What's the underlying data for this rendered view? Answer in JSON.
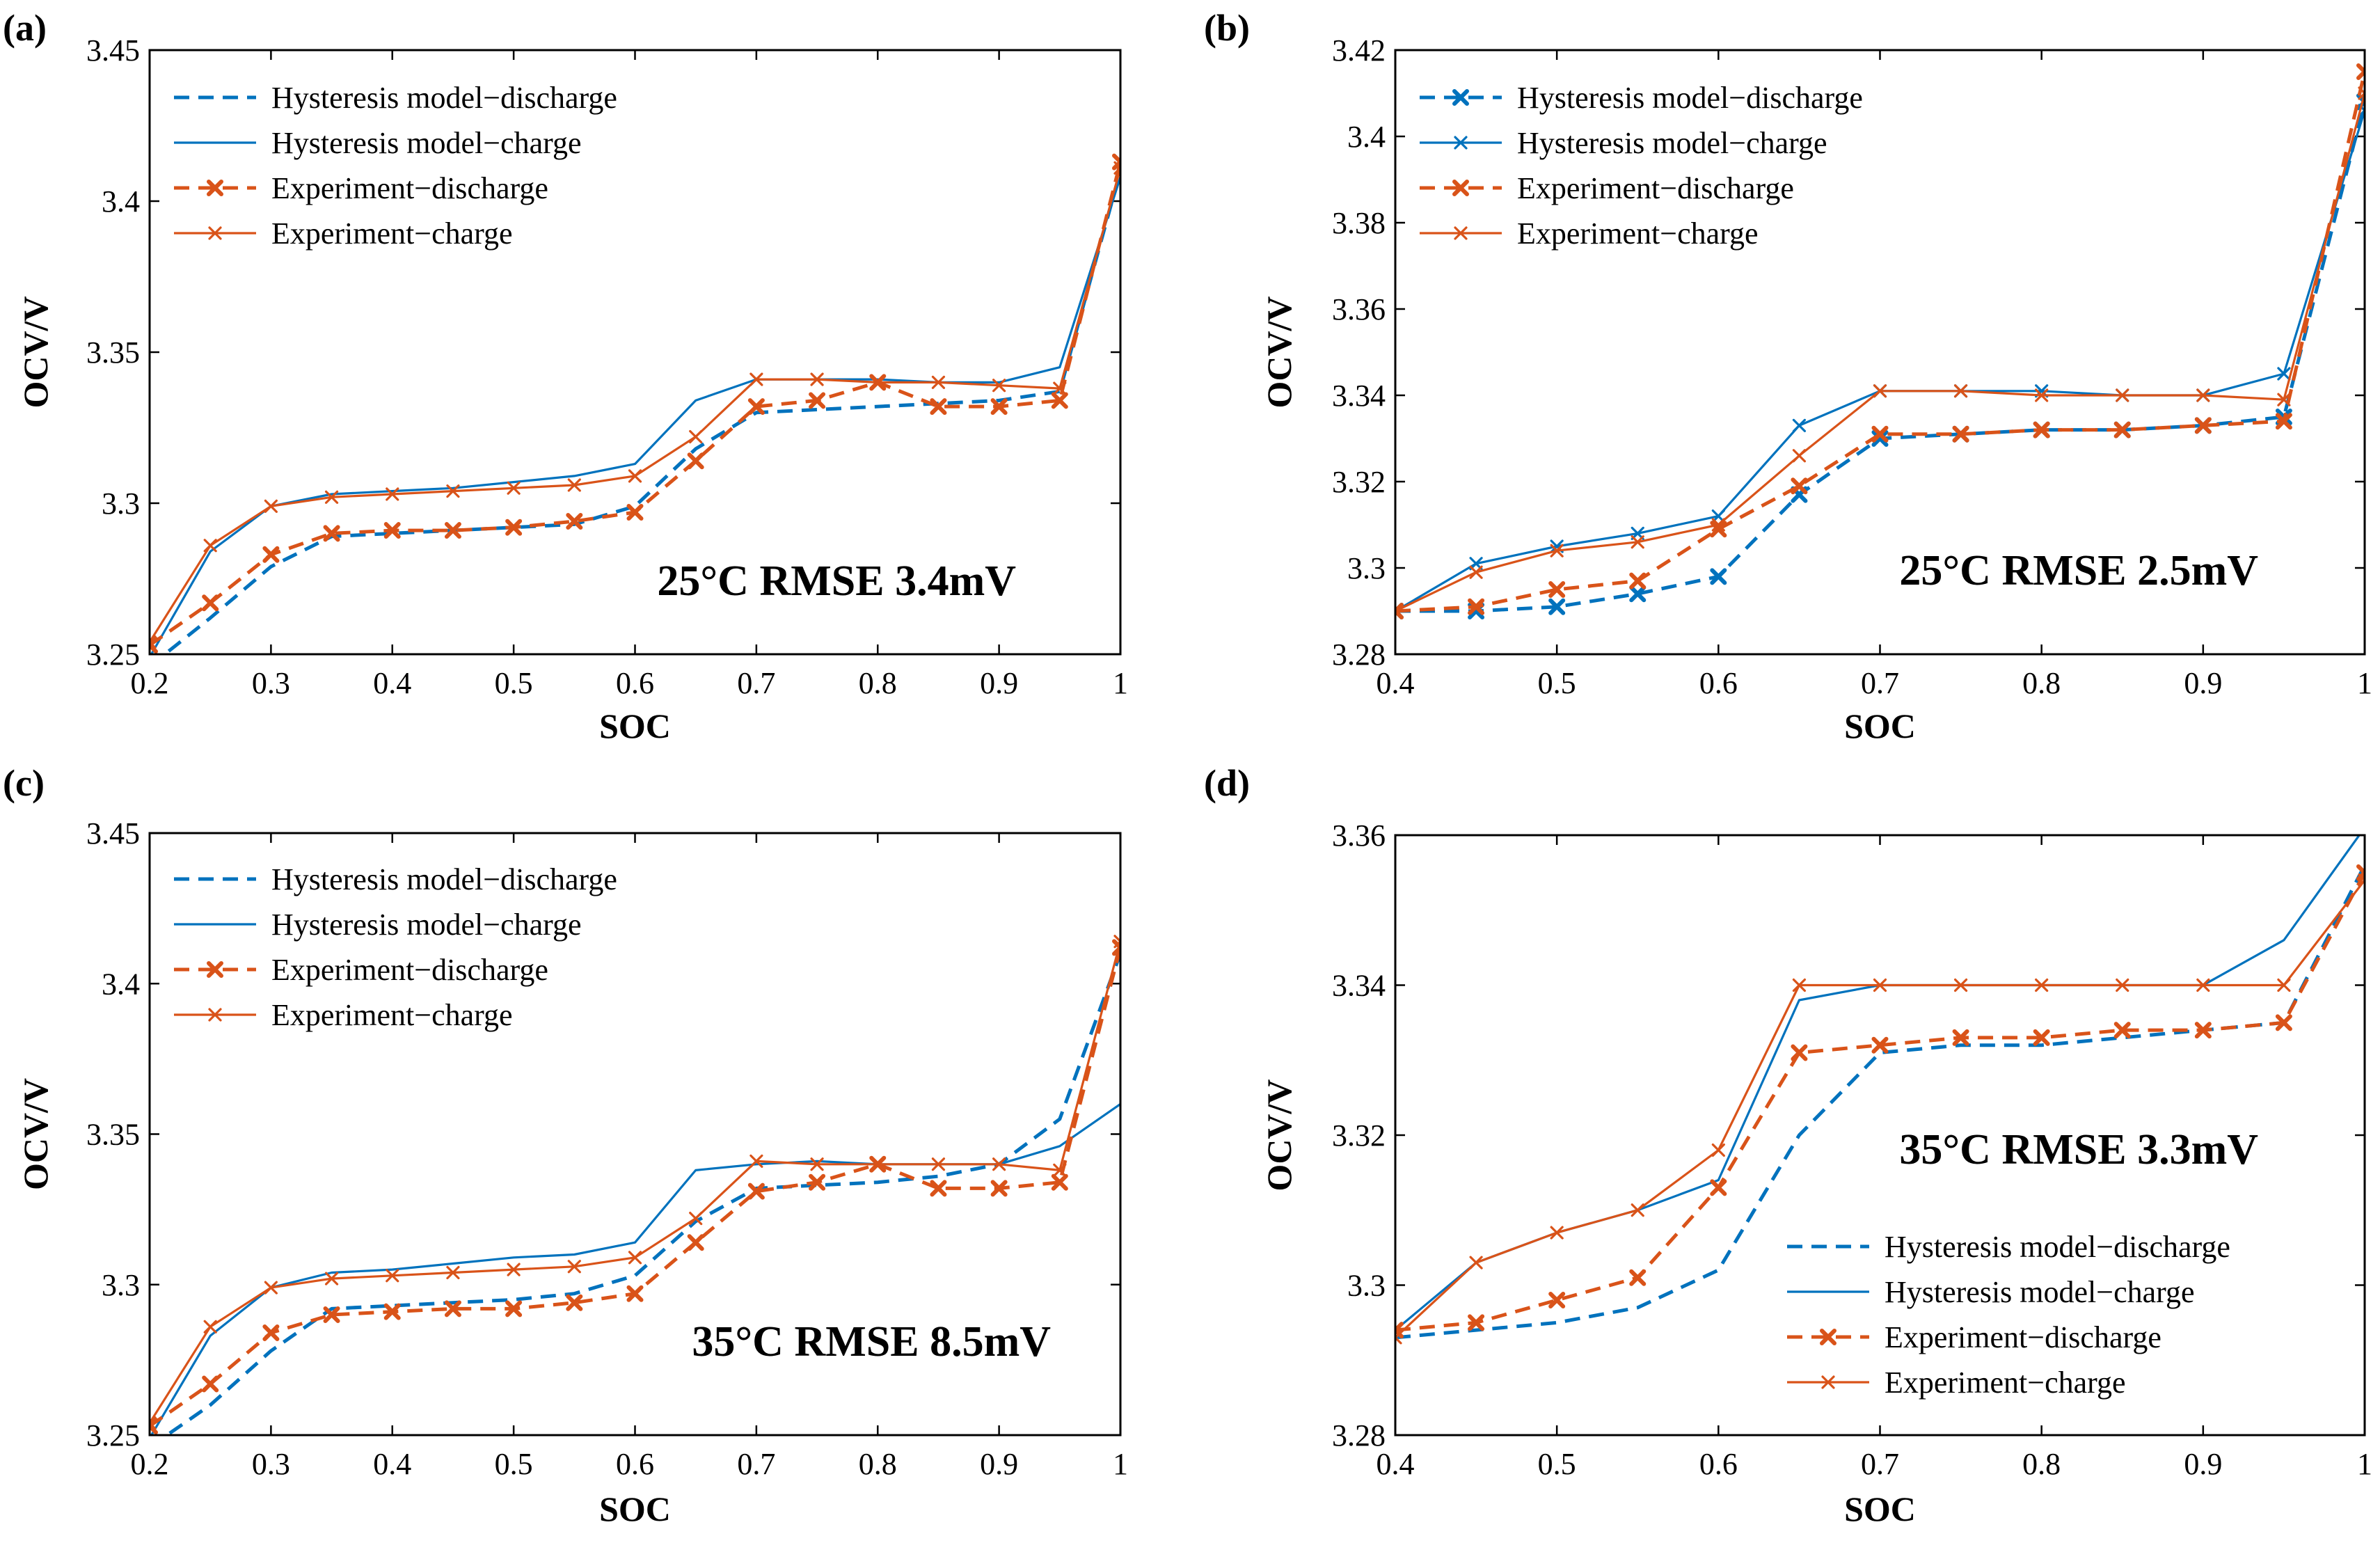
{
  "chart_data": [
    {
      "type": "line",
      "panel_label": "(a)",
      "annotation": "25°C RMSE 3.4mV",
      "xlabel": "SOC",
      "ylabel": "OCV/V",
      "xlim": [
        0.2,
        1
      ],
      "ylim": [
        3.25,
        3.45
      ],
      "xticks": [
        0.2,
        0.3,
        0.4,
        0.5,
        0.6,
        0.7,
        0.8,
        0.9,
        1
      ],
      "xtick_labels": [
        "0.2",
        "0.3",
        "0.4",
        "0.5",
        "0.6",
        "0.7",
        "0.8",
        "0.9",
        "1"
      ],
      "yticks": [
        3.25,
        3.3,
        3.35,
        3.4,
        3.45
      ],
      "ytick_labels": [
        "3.25",
        "3.3",
        "3.35",
        "3.4",
        "3.45"
      ],
      "legend_position": "top-left",
      "series": [
        {
          "name": "Hysteresis model−discharge",
          "color": "#0072BD",
          "style": "dashed",
          "marker": "none",
          "x": [
            0.2,
            0.25,
            0.3,
            0.35,
            0.4,
            0.45,
            0.5,
            0.55,
            0.6,
            0.65,
            0.7,
            0.75,
            0.8,
            0.85,
            0.9,
            0.95,
            1
          ],
          "y": [
            3.246,
            3.262,
            3.279,
            3.289,
            3.29,
            3.291,
            3.292,
            3.293,
            3.299,
            3.318,
            3.33,
            3.331,
            3.332,
            3.333,
            3.334,
            3.337,
            3.41
          ]
        },
        {
          "name": "Hysteresis model−charge",
          "color": "#0072BD",
          "style": "solid",
          "marker": "none",
          "x": [
            0.2,
            0.25,
            0.3,
            0.35,
            0.4,
            0.45,
            0.5,
            0.55,
            0.6,
            0.65,
            0.7,
            0.75,
            0.8,
            0.85,
            0.9,
            0.95,
            1
          ],
          "y": [
            3.249,
            3.284,
            3.299,
            3.303,
            3.304,
            3.305,
            3.307,
            3.309,
            3.313,
            3.334,
            3.341,
            3.341,
            3.341,
            3.34,
            3.34,
            3.345,
            3.408
          ]
        },
        {
          "name": "Experiment−discharge",
          "color": "#D95319",
          "style": "dashed",
          "marker": "x-bold",
          "x": [
            0.2,
            0.25,
            0.3,
            0.35,
            0.4,
            0.45,
            0.5,
            0.55,
            0.6,
            0.65,
            0.7,
            0.75,
            0.8,
            0.85,
            0.9,
            0.95,
            1
          ],
          "y": [
            3.253,
            3.267,
            3.283,
            3.29,
            3.291,
            3.291,
            3.292,
            3.294,
            3.297,
            3.314,
            3.332,
            3.334,
            3.34,
            3.332,
            3.332,
            3.334,
            3.413
          ]
        },
        {
          "name": "Experiment−charge",
          "color": "#D95319",
          "style": "solid",
          "marker": "x",
          "x": [
            0.2,
            0.25,
            0.3,
            0.35,
            0.4,
            0.45,
            0.5,
            0.55,
            0.6,
            0.65,
            0.7,
            0.75,
            0.8,
            0.85,
            0.9,
            0.95,
            1
          ],
          "y": [
            3.254,
            3.286,
            3.299,
            3.302,
            3.303,
            3.304,
            3.305,
            3.306,
            3.309,
            3.322,
            3.341,
            3.341,
            3.34,
            3.34,
            3.339,
            3.338,
            3.411
          ]
        }
      ]
    },
    {
      "type": "line",
      "panel_label": "(b)",
      "annotation": "25°C RMSE 2.5mV",
      "xlabel": "SOC",
      "ylabel": "OCV/V",
      "xlim": [
        0.4,
        1
      ],
      "ylim": [
        3.28,
        3.42
      ],
      "xticks": [
        0.4,
        0.5,
        0.6,
        0.7,
        0.8,
        0.9,
        1
      ],
      "xtick_labels": [
        "0.4",
        "0.5",
        "0.6",
        "0.7",
        "0.8",
        "0.9",
        "1"
      ],
      "yticks": [
        3.28,
        3.3,
        3.32,
        3.34,
        3.36,
        3.38,
        3.4,
        3.42
      ],
      "ytick_labels": [
        "3.28",
        "3.3",
        "3.32",
        "3.34",
        "3.36",
        "3.38",
        "3.4",
        "3.42"
      ],
      "legend_position": "top-left",
      "series": [
        {
          "name": "Hysteresis model−discharge",
          "color": "#0072BD",
          "style": "dashed",
          "marker": "x-bold",
          "x": [
            0.4,
            0.45,
            0.5,
            0.55,
            0.6,
            0.65,
            0.7,
            0.75,
            0.8,
            0.85,
            0.9,
            0.95,
            1
          ],
          "y": [
            3.29,
            3.29,
            3.291,
            3.294,
            3.298,
            3.317,
            3.33,
            3.331,
            3.332,
            3.332,
            3.333,
            3.335,
            3.408
          ]
        },
        {
          "name": "Hysteresis model−charge",
          "color": "#0072BD",
          "style": "solid",
          "marker": "x",
          "x": [
            0.4,
            0.45,
            0.5,
            0.55,
            0.6,
            0.65,
            0.7,
            0.75,
            0.8,
            0.85,
            0.9,
            0.95,
            1
          ],
          "y": [
            3.29,
            3.301,
            3.305,
            3.308,
            3.312,
            3.333,
            3.341,
            3.341,
            3.341,
            3.34,
            3.34,
            3.345,
            3.406
          ]
        },
        {
          "name": "Experiment−discharge",
          "color": "#D95319",
          "style": "dashed",
          "marker": "x-bold",
          "x": [
            0.4,
            0.45,
            0.5,
            0.55,
            0.6,
            0.65,
            0.7,
            0.75,
            0.8,
            0.85,
            0.9,
            0.95,
            1
          ],
          "y": [
            3.29,
            3.291,
            3.295,
            3.297,
            3.309,
            3.319,
            3.331,
            3.331,
            3.332,
            3.332,
            3.333,
            3.334,
            3.415
          ]
        },
        {
          "name": "Experiment−charge",
          "color": "#D95319",
          "style": "solid",
          "marker": "x",
          "x": [
            0.4,
            0.45,
            0.5,
            0.55,
            0.6,
            0.65,
            0.7,
            0.75,
            0.8,
            0.85,
            0.9,
            0.95,
            1
          ],
          "y": [
            3.29,
            3.299,
            3.304,
            3.306,
            3.31,
            3.326,
            3.341,
            3.341,
            3.34,
            3.34,
            3.34,
            3.339,
            3.41
          ]
        }
      ]
    },
    {
      "type": "line",
      "panel_label": "(c)",
      "annotation": "35°C RMSE 8.5mV",
      "xlabel": "SOC",
      "ylabel": "OCV/V",
      "xlim": [
        0.2,
        1
      ],
      "ylim": [
        3.25,
        3.45
      ],
      "xticks": [
        0.2,
        0.3,
        0.4,
        0.5,
        0.6,
        0.7,
        0.8,
        0.9,
        1
      ],
      "xtick_labels": [
        "0.2",
        "0.3",
        "0.4",
        "0.5",
        "0.6",
        "0.7",
        "0.8",
        "0.9",
        "1"
      ],
      "yticks": [
        3.25,
        3.3,
        3.35,
        3.4,
        3.45
      ],
      "ytick_labels": [
        "3.25",
        "3.3",
        "3.35",
        "3.4",
        "3.45"
      ],
      "legend_position": "top-left",
      "series": [
        {
          "name": "Hysteresis model−discharge",
          "color": "#0072BD",
          "style": "dashed",
          "marker": "none",
          "x": [
            0.2,
            0.25,
            0.3,
            0.35,
            0.4,
            0.45,
            0.5,
            0.55,
            0.6,
            0.65,
            0.7,
            0.75,
            0.8,
            0.85,
            0.9,
            0.95,
            1
          ],
          "y": [
            3.246,
            3.26,
            3.278,
            3.292,
            3.293,
            3.294,
            3.295,
            3.297,
            3.303,
            3.321,
            3.332,
            3.333,
            3.334,
            3.336,
            3.34,
            3.355,
            3.41
          ]
        },
        {
          "name": "Hysteresis model−charge",
          "color": "#0072BD",
          "style": "solid",
          "marker": "none",
          "x": [
            0.2,
            0.25,
            0.3,
            0.35,
            0.4,
            0.45,
            0.5,
            0.55,
            0.6,
            0.65,
            0.7,
            0.75,
            0.8,
            0.85,
            0.9,
            0.95,
            1
          ],
          "y": [
            3.249,
            3.283,
            3.299,
            3.304,
            3.305,
            3.307,
            3.309,
            3.31,
            3.314,
            3.338,
            3.34,
            3.341,
            3.34,
            3.34,
            3.34,
            3.346,
            3.36
          ]
        },
        {
          "name": "Experiment−discharge",
          "color": "#D95319",
          "style": "dashed",
          "marker": "x-bold",
          "x": [
            0.2,
            0.25,
            0.3,
            0.35,
            0.4,
            0.45,
            0.5,
            0.55,
            0.6,
            0.65,
            0.7,
            0.75,
            0.8,
            0.85,
            0.9,
            0.95,
            1
          ],
          "y": [
            3.253,
            3.267,
            3.284,
            3.29,
            3.291,
            3.292,
            3.292,
            3.294,
            3.297,
            3.314,
            3.331,
            3.334,
            3.34,
            3.332,
            3.332,
            3.334,
            3.412
          ]
        },
        {
          "name": "Experiment−charge",
          "color": "#D95319",
          "style": "solid",
          "marker": "x",
          "x": [
            0.2,
            0.25,
            0.3,
            0.35,
            0.4,
            0.45,
            0.5,
            0.55,
            0.6,
            0.65,
            0.7,
            0.75,
            0.8,
            0.85,
            0.9,
            0.95,
            1
          ],
          "y": [
            3.254,
            3.286,
            3.299,
            3.302,
            3.303,
            3.304,
            3.305,
            3.306,
            3.309,
            3.322,
            3.341,
            3.34,
            3.34,
            3.34,
            3.34,
            3.338,
            3.414
          ]
        }
      ]
    },
    {
      "type": "line",
      "panel_label": "(d)",
      "annotation": "35°C RMSE 3.3mV",
      "xlabel": "SOC",
      "ylabel": "OCV/V",
      "xlim": [
        0.4,
        1
      ],
      "ylim": [
        3.28,
        3.36
      ],
      "xticks": [
        0.4,
        0.5,
        0.6,
        0.7,
        0.8,
        0.9,
        1
      ],
      "xtick_labels": [
        "0.4",
        "0.5",
        "0.6",
        "0.7",
        "0.8",
        "0.9",
        "1"
      ],
      "yticks": [
        3.28,
        3.3,
        3.32,
        3.34,
        3.36
      ],
      "ytick_labels": [
        "3.28",
        "3.3",
        "3.32",
        "3.34",
        "3.36"
      ],
      "legend_position": "bottom-right",
      "series": [
        {
          "name": "Hysteresis model−discharge",
          "color": "#0072BD",
          "style": "dashed",
          "marker": "none",
          "x": [
            0.4,
            0.45,
            0.5,
            0.55,
            0.6,
            0.65,
            0.7,
            0.75,
            0.8,
            0.85,
            0.9,
            0.95,
            1
          ],
          "y": [
            3.293,
            3.294,
            3.295,
            3.297,
            3.302,
            3.32,
            3.331,
            3.332,
            3.332,
            3.333,
            3.334,
            3.335,
            3.356
          ]
        },
        {
          "name": "Hysteresis model−charge",
          "color": "#0072BD",
          "style": "solid",
          "marker": "none",
          "x": [
            0.4,
            0.45,
            0.5,
            0.55,
            0.6,
            0.65,
            0.7,
            0.75,
            0.8,
            0.85,
            0.9,
            0.95,
            1
          ],
          "y": [
            3.294,
            3.303,
            3.307,
            3.31,
            3.314,
            3.338,
            3.34,
            3.34,
            3.34,
            3.34,
            3.34,
            3.346,
            3.361
          ]
        },
        {
          "name": "Experiment−discharge",
          "color": "#D95319",
          "style": "dashed",
          "marker": "x-bold",
          "x": [
            0.4,
            0.45,
            0.5,
            0.55,
            0.6,
            0.65,
            0.7,
            0.75,
            0.8,
            0.85,
            0.9,
            0.95,
            1
          ],
          "y": [
            3.294,
            3.295,
            3.298,
            3.301,
            3.313,
            3.331,
            3.332,
            3.333,
            3.333,
            3.334,
            3.334,
            3.335,
            3.355
          ]
        },
        {
          "name": "Experiment−charge",
          "color": "#D95319",
          "style": "solid",
          "marker": "x",
          "x": [
            0.4,
            0.45,
            0.5,
            0.55,
            0.6,
            0.65,
            0.7,
            0.75,
            0.8,
            0.85,
            0.9,
            0.95,
            1
          ],
          "y": [
            3.293,
            3.303,
            3.307,
            3.31,
            3.318,
            3.34,
            3.34,
            3.34,
            3.34,
            3.34,
            3.34,
            3.34,
            3.354
          ]
        }
      ]
    }
  ]
}
